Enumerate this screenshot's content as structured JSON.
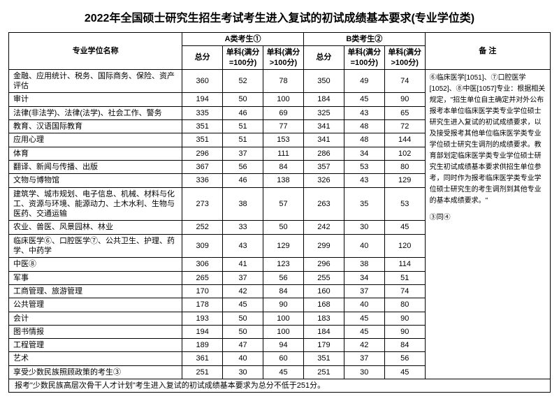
{
  "title": "2022年全国硕士研究生招生考试考生进入复试的初试成绩基本要求(专业学位类)",
  "headers": {
    "degreeName": "专业学位名称",
    "groupA": "A类考生①",
    "groupB": "B类考生②",
    "notes": "备 注",
    "total": "总分",
    "sub100": "单科(满分=100分)",
    "subOver100": "单科(满分>100分)"
  },
  "rows": [
    {
      "name": "金融、应用统计、税务、国际商务、保险、资产评估",
      "a": [
        360,
        52,
        78
      ],
      "b": [
        350,
        49,
        74
      ]
    },
    {
      "name": "审计",
      "a": [
        194,
        50,
        100
      ],
      "b": [
        184,
        45,
        90
      ]
    },
    {
      "name": "法律(非法学)、法律(法学)、社会工作、警务",
      "a": [
        335,
        46,
        69
      ],
      "b": [
        325,
        43,
        65
      ]
    },
    {
      "name": "教育、汉语国际教育",
      "a": [
        351,
        51,
        77
      ],
      "b": [
        341,
        48,
        72
      ]
    },
    {
      "name": "应用心理",
      "a": [
        351,
        51,
        153
      ],
      "b": [
        341,
        48,
        144
      ]
    },
    {
      "name": "体育",
      "a": [
        296,
        37,
        111
      ],
      "b": [
        286,
        34,
        102
      ]
    },
    {
      "name": "翻译、新闻与传播、出版",
      "a": [
        367,
        56,
        84
      ],
      "b": [
        357,
        53,
        80
      ]
    },
    {
      "name": "文物与博物馆",
      "a": [
        336,
        46,
        138
      ],
      "b": [
        326,
        43,
        129
      ]
    },
    {
      "name": "建筑学、城市规划、电子信息、机械、材料与化工、资源与环境、能源动力、土木水利、生物与医药、交通运输",
      "a": [
        273,
        38,
        57
      ],
      "b": [
        263,
        35,
        53
      ]
    },
    {
      "name": "农业、兽医、风景园林、林业",
      "a": [
        252,
        33,
        50
      ],
      "b": [
        242,
        30,
        45
      ]
    },
    {
      "name": "临床医学⑥、口腔医学⑦、公共卫生、护理、药学、中药学",
      "a": [
        309,
        43,
        129
      ],
      "b": [
        299,
        40,
        120
      ]
    },
    {
      "name": "中医⑧",
      "a": [
        306,
        41,
        123
      ],
      "b": [
        296,
        38,
        114
      ]
    },
    {
      "name": "军事",
      "a": [
        265,
        37,
        56
      ],
      "b": [
        255,
        34,
        51
      ]
    },
    {
      "name": "工商管理、旅游管理",
      "a": [
        170,
        42,
        84
      ],
      "b": [
        160,
        37,
        74
      ]
    },
    {
      "name": "公共管理",
      "a": [
        178,
        45,
        90
      ],
      "b": [
        168,
        40,
        80
      ]
    },
    {
      "name": "会计",
      "a": [
        193,
        50,
        100
      ],
      "b": [
        183,
        45,
        90
      ]
    },
    {
      "name": "图书情报",
      "a": [
        194,
        50,
        100
      ],
      "b": [
        184,
        45,
        90
      ]
    },
    {
      "name": "工程管理",
      "a": [
        189,
        47,
        94
      ],
      "b": [
        179,
        42,
        84
      ]
    },
    {
      "name": "艺术",
      "a": [
        361,
        40,
        60
      ],
      "b": [
        351,
        37,
        56
      ]
    },
    {
      "name": "享受少数民族照顾政策的考生③",
      "a": [
        251,
        30,
        45
      ],
      "b": [
        251,
        30,
        45
      ]
    }
  ],
  "notesText": "⑥临床医学[1051]、⑦口腔医学[1052]、⑧中医[1057]专业：根据相关规定，\"招生单位自主确定并对外公布报考本单位临床医学类专业学位硕士研究生进入复试的初试成绩要求，以及接受报考其他单位临床医学类专业学位硕士研究生调剂的成绩要求。教育部划定临床医学类专业学位硕士研究生初试成绩基本要求供招生单位参考，同时作为报考临床医学类专业学位硕士研究生的考生调剂到其他专业的基本成绩要求。\"",
  "notesExtra": "③同④",
  "footnote": "报考\"少数民族高层次骨干人才计划\"考生进入复试的初试成绩基本要求为总分不低于251分。"
}
